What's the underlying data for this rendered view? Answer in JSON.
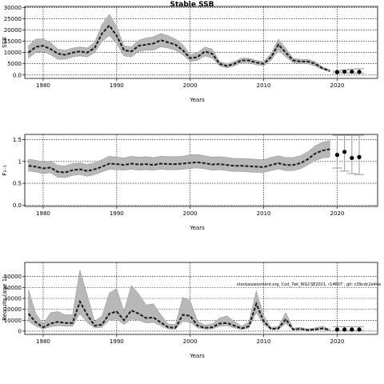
{
  "chart_data": [
    {
      "type": "line",
      "title": "Stable SSB",
      "xlabel": "Years",
      "ylabel": "SSB",
      "xlim": [
        1977.5,
        2025.5
      ],
      "ylim": [
        -1500,
        30500
      ],
      "x_ticks": [
        1980,
        1990,
        2000,
        2010,
        2020
      ],
      "y_ticks": [
        0,
        5000,
        10000,
        15000,
        20000,
        25000,
        30000
      ],
      "grid": true,
      "series": [
        {
          "x": [
            1978,
            1979,
            1980,
            1981,
            1982,
            1983,
            1984,
            1985,
            1986,
            1987,
            1988,
            1989,
            1990,
            1991,
            1992,
            1993,
            1994,
            1995,
            1996,
            1997,
            1998,
            1999,
            2000,
            2001,
            2002,
            2003,
            2004,
            2005,
            2006,
            2007,
            2008,
            2009,
            2010,
            2011,
            2012,
            2013,
            2014,
            2015,
            2016,
            2017,
            2018,
            2019
          ],
          "values": [
            10000,
            12500,
            13000,
            11500,
            9500,
            9000,
            10000,
            10500,
            10000,
            12000,
            18500,
            22000,
            17500,
            11000,
            10500,
            13000,
            13500,
            14000,
            15500,
            14500,
            13500,
            11000,
            7500,
            8000,
            10500,
            9500,
            5000,
            4000,
            5000,
            6500,
            6500,
            5500,
            5000,
            8000,
            13500,
            10000,
            6500,
            6000,
            6000,
            5000,
            3000,
            1800
          ],
          "lower": [
            7500,
            10000,
            10500,
            9000,
            7000,
            7000,
            8000,
            8500,
            8000,
            10000,
            15000,
            17500,
            14000,
            8500,
            8000,
            10500,
            11000,
            11000,
            12500,
            12000,
            11000,
            9000,
            6000,
            6500,
            8500,
            7500,
            4000,
            3200,
            4000,
            5500,
            5500,
            4500,
            4200,
            6500,
            11000,
            8000,
            5500,
            5000,
            5000,
            4000,
            2500,
            1400
          ],
          "upper": [
            13000,
            16000,
            16000,
            14500,
            11500,
            11000,
            12000,
            12500,
            12000,
            14500,
            22500,
            27000,
            21500,
            13000,
            12500,
            15500,
            16500,
            17000,
            18500,
            17500,
            16000,
            13500,
            9000,
            10000,
            12500,
            11500,
            6000,
            5000,
            6000,
            7500,
            7500,
            6500,
            6000,
            9500,
            16000,
            12000,
            7500,
            7000,
            7000,
            6000,
            3500,
            2300
          ]
        },
        {
          "x": [
            2020,
            2021,
            2022,
            2023
          ],
          "values": [
            1300,
            1500,
            1500,
            1400
          ],
          "lower": [
            900,
            1000,
            900,
            800
          ],
          "upper": [
            1700,
            2200,
            2600,
            2800
          ]
        }
      ]
    },
    {
      "type": "line",
      "title": "",
      "xlabel": "Years",
      "ylabel": "F₂₋₅",
      "xlim": [
        1977.5,
        2025.5
      ],
      "ylim": [
        -0.03,
        1.62
      ],
      "x_ticks": [
        1980,
        1990,
        2000,
        2010,
        2020
      ],
      "y_ticks": [
        0.0,
        0.5,
        1.0,
        1.5
      ],
      "grid": true,
      "series": [
        {
          "x": [
            1978,
            1979,
            1980,
            1981,
            1982,
            1983,
            1984,
            1985,
            1986,
            1987,
            1988,
            1989,
            1990,
            1991,
            1992,
            1993,
            1994,
            1995,
            1996,
            1997,
            1998,
            1999,
            2000,
            2001,
            2002,
            2003,
            2004,
            2005,
            2006,
            2007,
            2008,
            2009,
            2010,
            2011,
            2012,
            2013,
            2014,
            2015,
            2016,
            2017,
            2018,
            2019
          ],
          "values": [
            0.9,
            0.88,
            0.84,
            0.86,
            0.76,
            0.75,
            0.8,
            0.82,
            0.78,
            0.82,
            0.88,
            0.95,
            0.94,
            0.92,
            0.95,
            0.93,
            0.94,
            0.92,
            0.95,
            0.94,
            0.94,
            0.95,
            0.97,
            0.98,
            0.96,
            0.93,
            0.94,
            0.92,
            0.9,
            0.9,
            0.89,
            0.88,
            0.87,
            0.92,
            0.96,
            0.92,
            0.92,
            0.96,
            1.05,
            1.18,
            1.25,
            1.28
          ],
          "lower": [
            0.78,
            0.76,
            0.72,
            0.74,
            0.64,
            0.63,
            0.68,
            0.7,
            0.66,
            0.7,
            0.76,
            0.82,
            0.81,
            0.8,
            0.82,
            0.8,
            0.81,
            0.8,
            0.82,
            0.81,
            0.81,
            0.82,
            0.84,
            0.85,
            0.83,
            0.8,
            0.81,
            0.79,
            0.77,
            0.77,
            0.76,
            0.75,
            0.75,
            0.79,
            0.83,
            0.79,
            0.79,
            0.83,
            0.92,
            1.02,
            1.08,
            1.1
          ],
          "upper": [
            1.05,
            1.03,
            0.99,
            1.01,
            0.91,
            0.9,
            0.95,
            0.97,
            0.93,
            0.97,
            1.04,
            1.12,
            1.1,
            1.08,
            1.12,
            1.1,
            1.11,
            1.09,
            1.12,
            1.11,
            1.11,
            1.12,
            1.15,
            1.16,
            1.13,
            1.1,
            1.11,
            1.09,
            1.07,
            1.07,
            1.06,
            1.05,
            1.04,
            1.09,
            1.13,
            1.09,
            1.09,
            1.13,
            1.22,
            1.36,
            1.44,
            1.48
          ]
        },
        {
          "x": [
            2020,
            2021,
            2022,
            2023
          ],
          "values": [
            1.15,
            1.22,
            1.08,
            1.1
          ],
          "lower": [
            0.85,
            0.78,
            0.72,
            0.7
          ],
          "upper": [
            1.6,
            1.6,
            1.6,
            1.6
          ]
        }
      ]
    },
    {
      "type": "line",
      "title": "",
      "xlabel": "Years",
      "ylabel": "Recruits (age 1)",
      "xlim": [
        1977.5,
        2025.5
      ],
      "ylim": [
        -3000,
        63000
      ],
      "x_ticks": [
        1980,
        1990,
        2000,
        2010,
        2020
      ],
      "y_ticks": [
        0,
        10000,
        20000,
        30000,
        40000,
        50000
      ],
      "y_tick_labels": [
        "0",
        "10000",
        "20000",
        "30000",
        "40000",
        "50000"
      ],
      "grid": true,
      "annotation": "stockassessment.org, Cod_7ek_WGCSE2021, r14607 , git: c39cdc2e44e",
      "series": [
        {
          "x": [
            1978,
            1979,
            1980,
            1981,
            1982,
            1983,
            1984,
            1985,
            1986,
            1987,
            1988,
            1989,
            1990,
            1991,
            1992,
            1993,
            1994,
            1995,
            1996,
            1997,
            1998,
            1999,
            2000,
            2001,
            2002,
            2003,
            2004,
            2005,
            2006,
            2007,
            2008,
            2009,
            2010,
            2011,
            2012,
            2013,
            2014,
            2015,
            2016,
            2017,
            2018,
            2019
          ],
          "values": [
            16000,
            8000,
            3500,
            7000,
            8500,
            7500,
            7500,
            27000,
            15000,
            5000,
            6000,
            16000,
            18000,
            10000,
            19000,
            16000,
            12000,
            12500,
            8000,
            3500,
            3000,
            15000,
            14000,
            5000,
            3000,
            3500,
            7000,
            7500,
            5000,
            2500,
            4500,
            25000,
            9000,
            2000,
            2500,
            11000,
            1500,
            2000,
            1000,
            1500,
            2500,
            1000
          ],
          "lower": [
            9000,
            4500,
            2000,
            4000,
            5000,
            4500,
            4500,
            16000,
            8000,
            3000,
            3500,
            10000,
            11000,
            6000,
            11000,
            10000,
            7500,
            8000,
            5000,
            2000,
            1800,
            9000,
            8000,
            3000,
            1800,
            2000,
            4500,
            5000,
            3000,
            1500,
            2800,
            17000,
            6000,
            1200,
            1500,
            7000,
            900,
            1200,
            600,
            900,
            1500,
            600
          ],
          "upper": [
            38000,
            16000,
            6500,
            17000,
            18000,
            15000,
            15000,
            56000,
            33000,
            9000,
            14000,
            35000,
            39000,
            18000,
            42000,
            34000,
            24000,
            25000,
            15000,
            6500,
            6000,
            31000,
            28000,
            9000,
            5500,
            6500,
            12000,
            14000,
            9000,
            4500,
            8500,
            37000,
            14000,
            3500,
            4500,
            17000,
            2800,
            3500,
            2000,
            3000,
            4500,
            1800
          ]
        },
        {
          "x": [
            2020,
            2021,
            2022,
            2023
          ],
          "values": [
            1500,
            1500,
            1500,
            1500
          ],
          "lower": [
            600,
            600,
            600,
            600
          ],
          "upper": [
            4000,
            4000,
            4000,
            4000
          ]
        }
      ]
    }
  ]
}
